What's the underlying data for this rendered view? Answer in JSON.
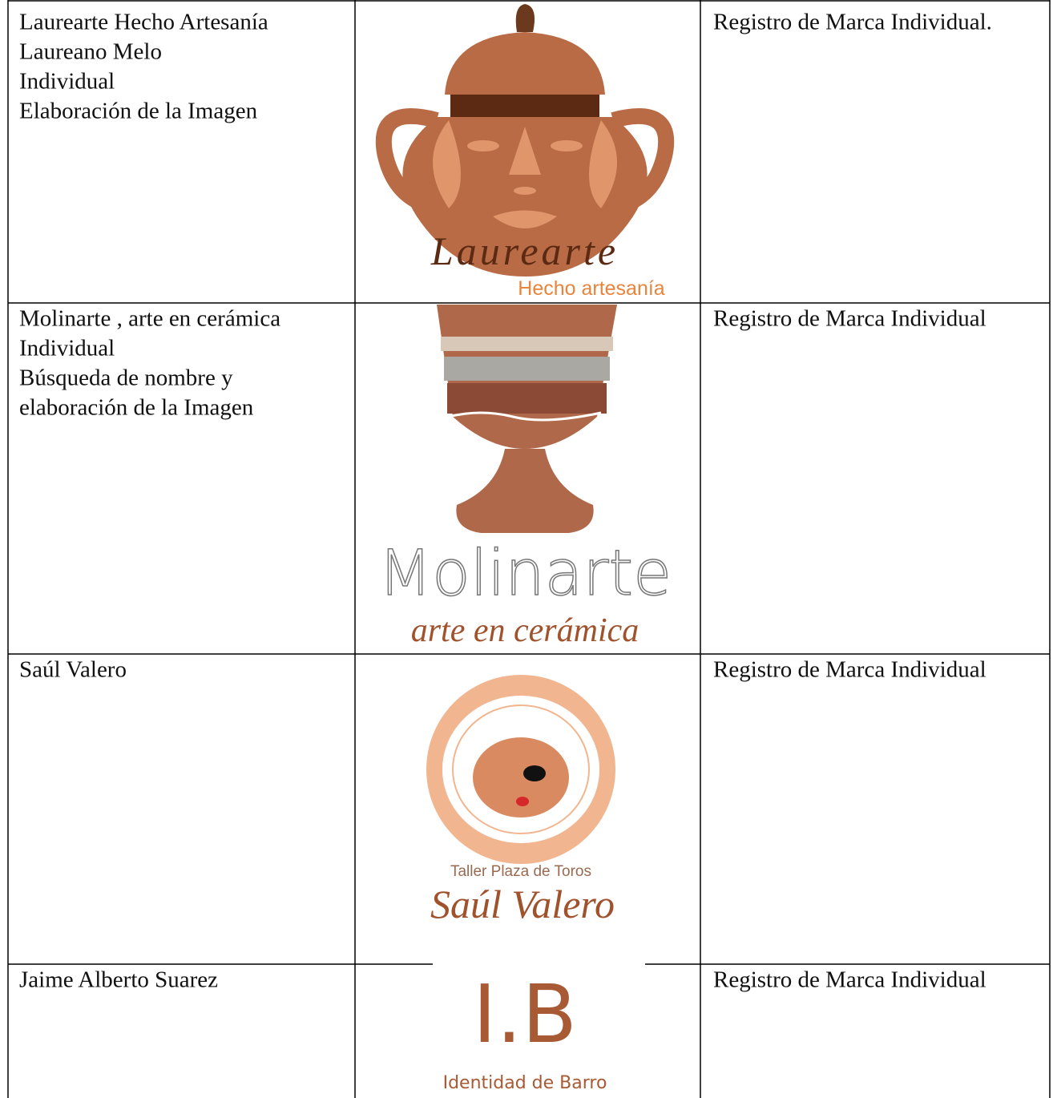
{
  "table": {
    "rows": [
      {
        "description": [
          "Laurearte Hecho Artesanía",
          "Laureano Melo",
          "Individual",
          "Elaboración de la Imagen"
        ],
        "logo": {
          "name": "Laurearte",
          "tagline": "Hecho artesanía"
        },
        "status": "Registro de Marca Individual."
      },
      {
        "description": [
          "Molinarte , arte en cerámica",
          "Individual",
          "Búsqueda de nombre y",
          "elaboración de la Imagen"
        ],
        "logo": {
          "name": "Molinarte",
          "tagline": "arte en cerámica"
        },
        "status": "Registro de Marca Individual"
      },
      {
        "description": [
          "Saúl Valero"
        ],
        "logo": {
          "tagline": "Taller Plaza de Toros",
          "name": "Saúl Valero"
        },
        "status": "Registro de Marca Individual"
      },
      {
        "description": [
          "Jaime Alberto Suarez"
        ],
        "logo": {
          "name": "I.B",
          "tagline": "Identidad de Barro"
        },
        "status": "Registro de Marca Individual"
      }
    ]
  }
}
